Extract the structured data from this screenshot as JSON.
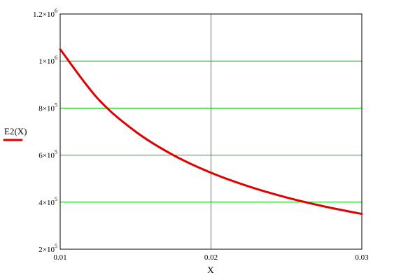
{
  "chart_data": {
    "type": "line",
    "xlabel": "X",
    "ylabel": "E2(X)",
    "xlim": [
      0.01,
      0.03
    ],
    "ylim": [
      200000,
      1200000
    ],
    "grid": true,
    "x_ticks": [
      {
        "value": 0.01,
        "label": "0.01"
      },
      {
        "value": 0.02,
        "label": "0.02"
      },
      {
        "value": 0.03,
        "label": "0.03"
      }
    ],
    "y_ticks": [
      {
        "value": 200000,
        "mantissa": "2×10",
        "exponent": "5"
      },
      {
        "value": 400000,
        "mantissa": "4×10",
        "exponent": "5"
      },
      {
        "value": 600000,
        "mantissa": "6×10",
        "exponent": "5"
      },
      {
        "value": 800000,
        "mantissa": "8×10",
        "exponent": "5"
      },
      {
        "value": 1000000,
        "mantissa": "1×10",
        "exponent": "6"
      },
      {
        "value": 1200000,
        "mantissa": "1.2×10",
        "exponent": "6"
      }
    ],
    "series": [
      {
        "color": "#e00000",
        "x": [
          0.01,
          0.0125,
          0.015,
          0.0175,
          0.02,
          0.0225,
          0.025,
          0.0275,
          0.03
        ],
        "y": [
          1050000,
          840000,
          700000,
          600000,
          525000,
          467000,
          420000,
          382000,
          350000
        ]
      }
    ],
    "colors": {
      "grid": "#00c000",
      "curve": "#e00000",
      "frame": "#000000"
    }
  }
}
